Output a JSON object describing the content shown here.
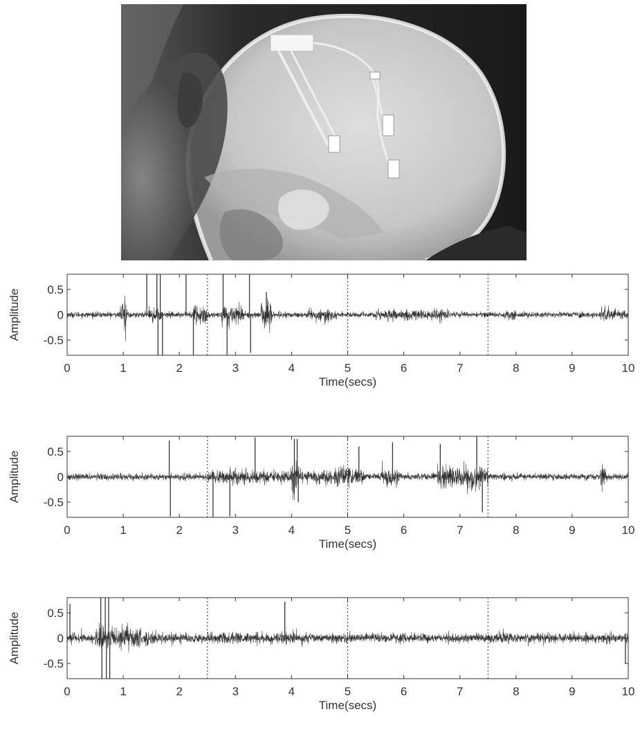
{
  "image": {
    "kind": "photograph",
    "subject": "lateral skull x-ray with implanted intracranial electrodes",
    "tones": [
      "#000000",
      "#3a3a3a",
      "#9a9a9a",
      "#d9d9d9"
    ]
  },
  "chart_data": [
    {
      "type": "line",
      "xlabel": "Time(secs)",
      "ylabel": "Amplitude",
      "xlim": [
        0,
        10
      ],
      "ylim": [
        -0.8,
        0.8
      ],
      "xticks": [
        0,
        1,
        2,
        3,
        4,
        5,
        6,
        7,
        8,
        9,
        10
      ],
      "yticks": [
        0.5,
        0,
        -0.5
      ],
      "ytick_labels": [
        "0.5",
        "0",
        "-0.5"
      ],
      "grid": false,
      "vlines": [
        2.5,
        5,
        7.5
      ],
      "line_color": "#333333",
      "baseline_amplitude": 0.06,
      "bursts": [
        {
          "t": 0.95,
          "dur": 0.12,
          "amp": 0.42
        },
        {
          "t": 1.45,
          "dur": 0.25,
          "amp": 0.2
        },
        {
          "t": 2.25,
          "dur": 0.25,
          "amp": 0.3
        },
        {
          "t": 2.75,
          "dur": 0.4,
          "amp": 0.28
        },
        {
          "t": 3.45,
          "dur": 0.2,
          "amp": 0.38
        },
        {
          "t": 4.3,
          "dur": 0.5,
          "amp": 0.16
        },
        {
          "t": 5.5,
          "dur": 1.3,
          "amp": 0.15
        },
        {
          "t": 7.8,
          "dur": 0.2,
          "amp": 0.14
        },
        {
          "t": 9.5,
          "dur": 0.5,
          "amp": 0.16
        }
      ],
      "spikes": [
        {
          "t": 1.42,
          "v": 0.8
        },
        {
          "t": 1.6,
          "v": 0.8
        },
        {
          "t": 1.62,
          "v": -0.8
        },
        {
          "t": 1.66,
          "v": 0.8
        },
        {
          "t": 1.7,
          "v": -0.8
        },
        {
          "t": 2.12,
          "v": 0.8
        },
        {
          "t": 2.25,
          "v": -0.8
        },
        {
          "t": 2.78,
          "v": 0.8
        },
        {
          "t": 2.85,
          "v": -0.8
        },
        {
          "t": 3.25,
          "v": 0.8
        },
        {
          "t": 3.27,
          "v": -0.75
        },
        {
          "t": 3.55,
          "v": 0.45
        }
      ]
    },
    {
      "type": "line",
      "xlabel": "Time(secs)",
      "ylabel": "Amplitude",
      "xlim": [
        0,
        10
      ],
      "ylim": [
        -0.8,
        0.8
      ],
      "xticks": [
        0,
        1,
        2,
        3,
        4,
        5,
        6,
        7,
        8,
        9,
        10
      ],
      "yticks": [
        0.5,
        0,
        -0.5
      ],
      "ytick_labels": [
        "0.5",
        "0",
        "-0.5"
      ],
      "grid": false,
      "vlines": [
        2.5,
        5,
        7.5
      ],
      "line_color": "#333333",
      "baseline_amplitude": 0.07,
      "bursts": [
        {
          "t": 2.5,
          "dur": 2.8,
          "amp": 0.18
        },
        {
          "t": 4.0,
          "dur": 0.12,
          "amp": 0.55
        },
        {
          "t": 4.8,
          "dur": 0.3,
          "amp": 0.3
        },
        {
          "t": 5.6,
          "dur": 0.3,
          "amp": 0.28
        },
        {
          "t": 6.6,
          "dur": 0.9,
          "amp": 0.3
        },
        {
          "t": 9.5,
          "dur": 0.1,
          "amp": 0.3
        }
      ],
      "spikes": [
        {
          "t": 1.82,
          "v": 0.72
        },
        {
          "t": 1.84,
          "v": -0.78
        },
        {
          "t": 2.6,
          "v": -0.8
        },
        {
          "t": 2.9,
          "v": -0.78
        },
        {
          "t": 3.35,
          "v": 0.78
        },
        {
          "t": 4.05,
          "v": 0.75
        },
        {
          "t": 4.1,
          "v": 0.75
        },
        {
          "t": 4.12,
          "v": -0.5
        },
        {
          "t": 5.2,
          "v": 0.6
        },
        {
          "t": 5.8,
          "v": 0.68
        },
        {
          "t": 6.65,
          "v": 0.65
        },
        {
          "t": 7.3,
          "v": 0.8
        },
        {
          "t": 7.4,
          "v": -0.7
        }
      ]
    },
    {
      "type": "line",
      "xlabel": "Time(secs)",
      "ylabel": "Amplitude",
      "xlim": [
        0,
        10
      ],
      "ylim": [
        -0.8,
        0.8
      ],
      "xticks": [
        0,
        1,
        2,
        3,
        4,
        5,
        6,
        7,
        8,
        9,
        10
      ],
      "yticks": [
        0.5,
        0,
        -0.5
      ],
      "ytick_labels": [
        "0.5",
        "0",
        "-0.5"
      ],
      "grid": false,
      "vlines": [
        2.5,
        5,
        7.5
      ],
      "line_color": "#333333",
      "baseline_amplitude": 0.1,
      "bursts": [
        {
          "t": 0.5,
          "dur": 0.8,
          "amp": 0.3
        },
        {
          "t": 1.3,
          "dur": 0.4,
          "amp": 0.18
        },
        {
          "t": 2.5,
          "dur": 1.8,
          "amp": 0.15
        },
        {
          "t": 7.5,
          "dur": 0.3,
          "amp": 0.15
        }
      ],
      "spikes": [
        {
          "t": 0.05,
          "v": 0.68
        },
        {
          "t": 0.6,
          "v": 0.8
        },
        {
          "t": 0.62,
          "v": -0.8
        },
        {
          "t": 0.68,
          "v": 0.8
        },
        {
          "t": 0.7,
          "v": -0.8
        },
        {
          "t": 0.74,
          "v": 0.8
        },
        {
          "t": 0.76,
          "v": -0.8
        },
        {
          "t": 3.88,
          "v": 0.72
        },
        {
          "t": 9.95,
          "v": -0.5
        }
      ]
    }
  ]
}
